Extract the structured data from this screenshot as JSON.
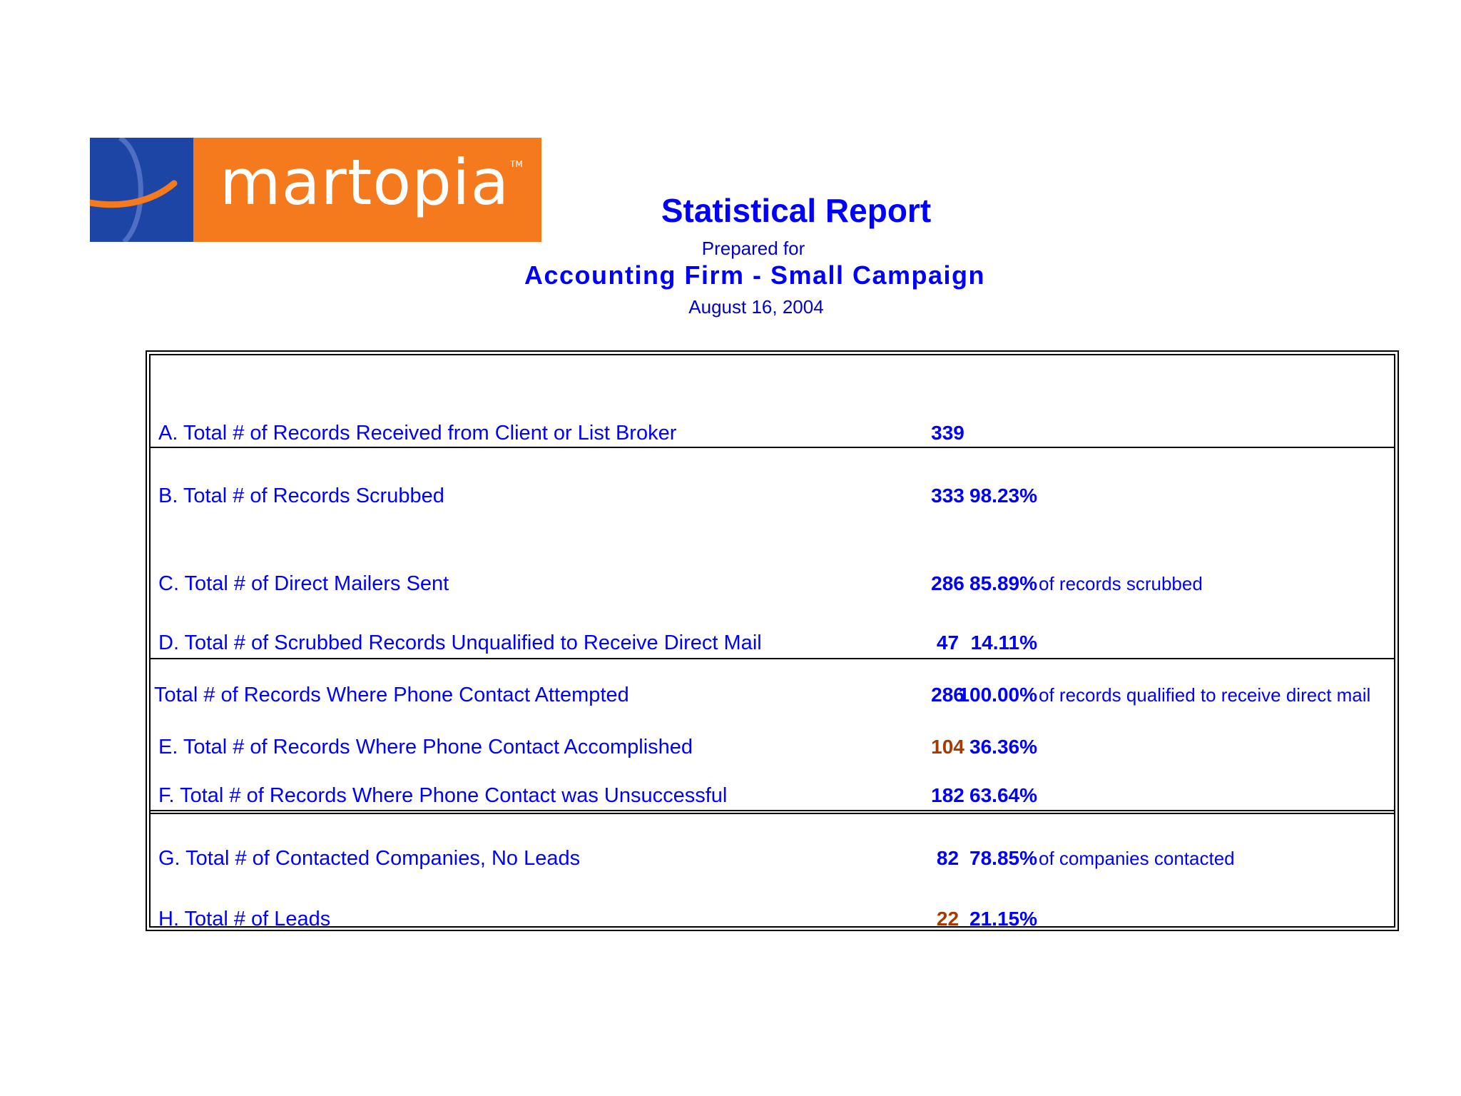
{
  "logo": {
    "text": "martopia",
    "tm": "TM",
    "colors": {
      "mark": "#1d45a6",
      "word": "#f47a1d",
      "swoosh": "#f47a1d"
    }
  },
  "header": {
    "title": "Statistical Report",
    "prepared": "Prepared for",
    "client": "Accounting Firm  - Small Campaign",
    "date": "August 16, 2004"
  },
  "colors": {
    "text": "#0000ff",
    "highlight": "#a83a00",
    "border": "#000000"
  },
  "rows": [
    {
      "label": "A.  Total # of Records Received from Client or List Broker",
      "value": "339",
      "pct": "",
      "note": ""
    },
    {
      "label": "B.  Total # of Records Scrubbed",
      "value": "333",
      "pct": "98.23%",
      "note": ""
    },
    {
      "label": "C.  Total # of Direct Mailers Sent",
      "value": "286",
      "pct": "85.89%",
      "note": "of records scrubbed"
    },
    {
      "label": "D.  Total # of Scrubbed Records Unqualified to Receive Direct Mail",
      "value": "47",
      "pct": "14.11%",
      "note": ""
    },
    {
      "label": "Total # of Records Where Phone Contact Attempted",
      "value": "286",
      "pct": "100.00%",
      "note": "of records qualified to receive direct mail"
    },
    {
      "label": "E.  Total # of Records Where Phone Contact Accomplished",
      "value": "104",
      "pct": "36.36%",
      "note": ""
    },
    {
      "label": "F.  Total # of Records Where Phone Contact was Unsuccessful",
      "value": "182",
      "pct": "63.64%",
      "note": ""
    },
    {
      "label": "G.  Total # of Contacted Companies, No Leads",
      "value": "82",
      "pct": "78.85%",
      "note": "of companies contacted"
    },
    {
      "label": "H.  Total # of Leads",
      "value": "22",
      "pct": "21.15%",
      "note": ""
    }
  ]
}
